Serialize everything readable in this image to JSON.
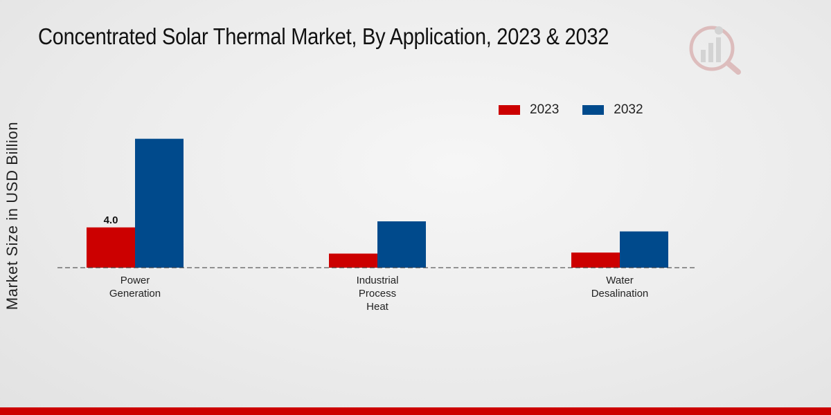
{
  "title": "Concentrated Solar Thermal Market, By Application, 2023 & 2032",
  "colors": {
    "series_2023": "#cc0000",
    "series_2032": "#004a8c",
    "brand_bar": "#cc0000"
  },
  "chart_data": {
    "type": "bar",
    "title": "Concentrated Solar Thermal Market, By Application, 2023 & 2032",
    "xlabel": "",
    "ylabel": "Market Size in USD Billion",
    "categories": [
      [
        "Power",
        "Generation"
      ],
      [
        "Industrial",
        "Process",
        "Heat"
      ],
      [
        "Water",
        "Desalination"
      ]
    ],
    "series": [
      {
        "name": "2023",
        "color": "#cc0000",
        "values": [
          4.0,
          1.4,
          1.5
        ]
      },
      {
        "name": "2032",
        "color": "#004a8c",
        "values": [
          12.8,
          4.6,
          3.6
        ]
      }
    ],
    "data_labels": [
      {
        "series": 0,
        "category": 0,
        "text": "4.0"
      }
    ],
    "ylim": [
      0,
      25
    ],
    "grid": false,
    "legend_position": "top-right",
    "baseline": "dashed"
  }
}
